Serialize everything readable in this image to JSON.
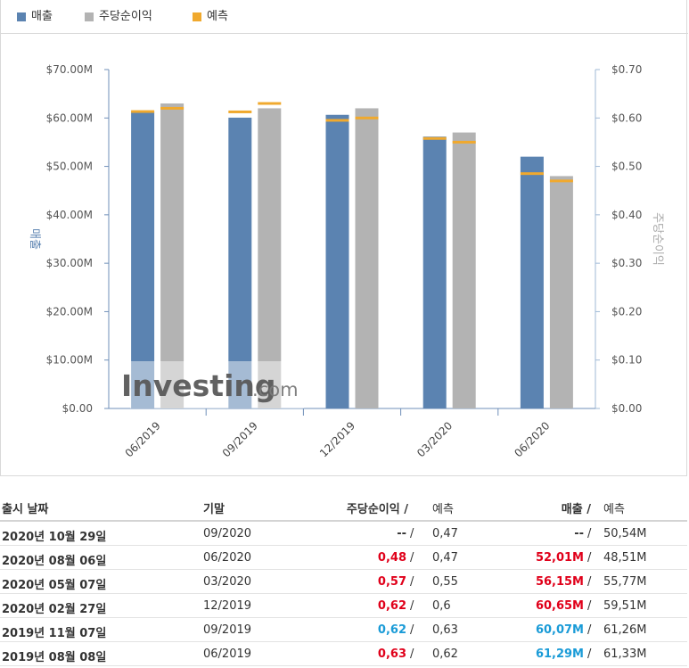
{
  "legend": [
    {
      "label": "매출",
      "color": "#5b83b1"
    },
    {
      "label": "주당순이익",
      "color": "#b3b3b3"
    },
    {
      "label": "예측",
      "color": "#f0a92e"
    }
  ],
  "chart_data": {
    "type": "bar",
    "categories": [
      "06/2019",
      "09/2019",
      "12/2019",
      "03/2020",
      "06/2020"
    ],
    "series": [
      {
        "name": "매출",
        "axis": "left",
        "color": "#5b83b1",
        "values": [
          61.29,
          60.07,
          60.65,
          56.15,
          52.01
        ]
      },
      {
        "name": "주당순이익",
        "axis": "right",
        "color": "#b3b3b3",
        "values": [
          0.63,
          0.62,
          0.62,
          0.57,
          0.48
        ]
      }
    ],
    "forecast": {
      "name": "예측",
      "color": "#f0a92e",
      "revenue": [
        61.33,
        61.26,
        59.51,
        55.77,
        48.51
      ],
      "eps": [
        0.62,
        0.63,
        0.6,
        0.55,
        0.47
      ]
    },
    "y_left": {
      "title": "매출",
      "range": [
        0,
        70
      ],
      "ticks": [
        0,
        10,
        20,
        30,
        40,
        50,
        60,
        70
      ],
      "tick_labels": [
        "$0.00",
        "$10.00M",
        "$20.00M",
        "$30.00M",
        "$40.00M",
        "$50.00M",
        "$60.00M",
        "$70.00M"
      ]
    },
    "y_right": {
      "title": "주당순이익",
      "range": [
        0,
        0.7
      ],
      "ticks": [
        0,
        0.1,
        0.2,
        0.3,
        0.4,
        0.5,
        0.6,
        0.7
      ],
      "tick_labels": [
        "$0.00",
        "$0.10",
        "$0.20",
        "$0.30",
        "$0.40",
        "$0.50",
        "$0.60",
        "$0.70"
      ]
    },
    "grid": false,
    "watermark": "Investing.com"
  },
  "table": {
    "headers": {
      "release_date": "출시 날짜",
      "period": "기말",
      "eps": "주당순이익 /",
      "eps_forecast": "예측",
      "revenue": "매출 /",
      "revenue_forecast": "예측"
    },
    "rows": [
      {
        "date": "2020년 10월 29일",
        "period": "09/2020",
        "eps": "--",
        "eps_color": "none",
        "eps_forecast": "0,47",
        "revenue": "--",
        "revenue_color": "none",
        "revenue_forecast": "50,54M"
      },
      {
        "date": "2020년 08월 06일",
        "period": "06/2020",
        "eps": "0,48",
        "eps_color": "red",
        "eps_forecast": "0,47",
        "revenue": "52,01M",
        "revenue_color": "red",
        "revenue_forecast": "48,51M"
      },
      {
        "date": "2020년 05월 07일",
        "period": "03/2020",
        "eps": "0,57",
        "eps_color": "red",
        "eps_forecast": "0,55",
        "revenue": "56,15M",
        "revenue_color": "red",
        "revenue_forecast": "55,77M"
      },
      {
        "date": "2020년 02월 27일",
        "period": "12/2019",
        "eps": "0,62",
        "eps_color": "red",
        "eps_forecast": "0,6",
        "revenue": "60,65M",
        "revenue_color": "red",
        "revenue_forecast": "59,51M"
      },
      {
        "date": "2019년 11월 07일",
        "period": "09/2019",
        "eps": "0,62",
        "eps_color": "blue",
        "eps_forecast": "0,63",
        "revenue": "60,07M",
        "revenue_color": "blue",
        "revenue_forecast": "61,26M"
      },
      {
        "date": "2019년 08월 08일",
        "period": "06/2019",
        "eps": "0,63",
        "eps_color": "red",
        "eps_forecast": "0,62",
        "revenue": "61,29M",
        "revenue_color": "blue",
        "revenue_forecast": "61,33M"
      }
    ]
  }
}
